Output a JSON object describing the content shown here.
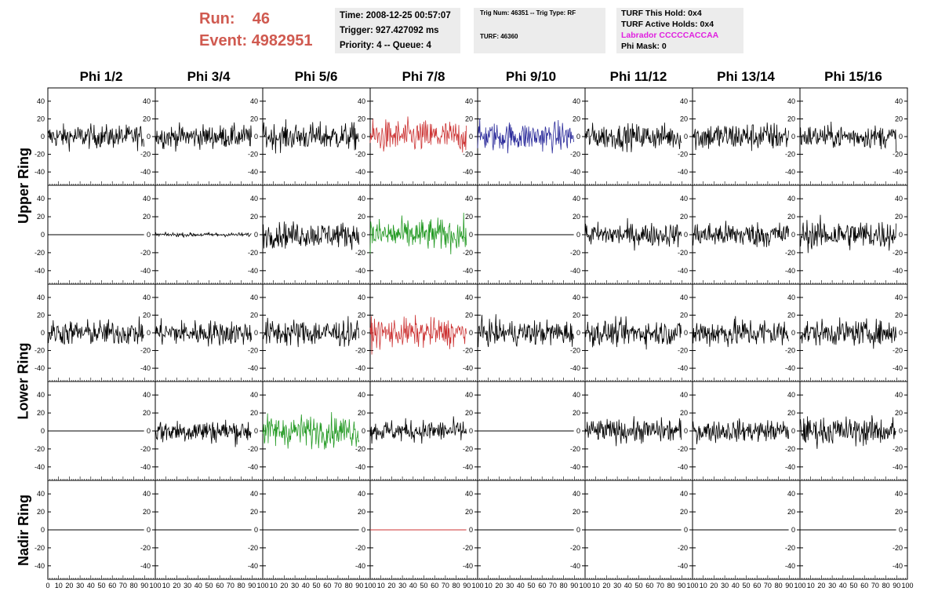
{
  "header": {
    "run_label": "Run:",
    "run_value": "46",
    "event_label": "Event:",
    "event_value": "4982951",
    "time_line": "Time: 2008-12-25 00:57:07",
    "trigger_line": "Trigger: 927.427092 ms",
    "priority_line": "Priority: 4 -- Queue: 4",
    "trig_num_line": "Trig Num: 46351 -- Trig Type: RF",
    "turf_line": "TURF: 46360",
    "turf_this_hold": "TURF This Hold: 0x4",
    "turf_active_holds": "TURF Active Holds: 0x4",
    "labrador_line": "Labrador CCCCCACCAA",
    "phi_mask_line": "Phi Mask: 0"
  },
  "columns": [
    "Phi 1/2",
    "Phi 3/4",
    "Phi 5/6",
    "Phi 7/8",
    "Phi 9/10",
    "Phi 11/12",
    "Phi 13/14",
    "Phi 15/16"
  ],
  "rows": [
    "Upper Ring",
    "Lower Ring",
    "Nadir Ring"
  ],
  "colors": {
    "black": "#000000",
    "red": "#cc3333",
    "blue": "#2a2a9a",
    "green": "#229922",
    "accent": "#d05a50",
    "magenta": "#e020e0"
  },
  "chart_data": {
    "type": "line",
    "title": "",
    "xlabel": "",
    "ylabel": "",
    "xlim": [
      0,
      100
    ],
    "ylim": [
      -55,
      55
    ],
    "y_ticks": [
      -40,
      -20,
      0,
      20,
      40
    ],
    "x_ticks": [
      0,
      10,
      20,
      30,
      40,
      50,
      60,
      70,
      80,
      90,
      100
    ],
    "waveform_length": 90,
    "grid": false,
    "panels": [
      {
        "row": 0,
        "col": 0,
        "color": "black",
        "amp": 12
      },
      {
        "row": 0,
        "col": 1,
        "color": "black",
        "amp": 12
      },
      {
        "row": 0,
        "col": 2,
        "color": "black",
        "amp": 14
      },
      {
        "row": 0,
        "col": 3,
        "color": "red",
        "amp": 17
      },
      {
        "row": 0,
        "col": 4,
        "color": "blue",
        "amp": 15
      },
      {
        "row": 0,
        "col": 5,
        "color": "black",
        "amp": 13
      },
      {
        "row": 0,
        "col": 6,
        "color": "black",
        "amp": 15
      },
      {
        "row": 0,
        "col": 7,
        "color": "black",
        "amp": 12
      },
      {
        "row": 1,
        "col": 0,
        "color": "black",
        "amp": 0
      },
      {
        "row": 1,
        "col": 1,
        "color": "black",
        "amp": 2
      },
      {
        "row": 1,
        "col": 2,
        "color": "black",
        "amp": 13
      },
      {
        "row": 1,
        "col": 3,
        "color": "green",
        "amp": 16
      },
      {
        "row": 1,
        "col": 4,
        "color": "black",
        "amp": 0
      },
      {
        "row": 1,
        "col": 5,
        "color": "black",
        "amp": 12
      },
      {
        "row": 1,
        "col": 6,
        "color": "black",
        "amp": 13
      },
      {
        "row": 1,
        "col": 7,
        "color": "black",
        "amp": 15
      },
      {
        "row": 2,
        "col": 0,
        "color": "black",
        "amp": 13
      },
      {
        "row": 2,
        "col": 1,
        "color": "black",
        "amp": 13
      },
      {
        "row": 2,
        "col": 2,
        "color": "black",
        "amp": 14
      },
      {
        "row": 2,
        "col": 3,
        "color": "red",
        "amp": 15
      },
      {
        "row": 2,
        "col": 4,
        "color": "black",
        "amp": 13
      },
      {
        "row": 2,
        "col": 5,
        "color": "black",
        "amp": 13
      },
      {
        "row": 2,
        "col": 6,
        "color": "black",
        "amp": 15
      },
      {
        "row": 2,
        "col": 7,
        "color": "black",
        "amp": 13
      },
      {
        "row": 3,
        "col": 0,
        "color": "black",
        "amp": 0
      },
      {
        "row": 3,
        "col": 1,
        "color": "black",
        "amp": 12
      },
      {
        "row": 3,
        "col": 2,
        "color": "green",
        "amp": 16
      },
      {
        "row": 3,
        "col": 3,
        "color": "black",
        "amp": 11
      },
      {
        "row": 3,
        "col": 4,
        "color": "black",
        "amp": 0
      },
      {
        "row": 3,
        "col": 5,
        "color": "black",
        "amp": 12
      },
      {
        "row": 3,
        "col": 6,
        "color": "black",
        "amp": 11
      },
      {
        "row": 3,
        "col": 7,
        "color": "black",
        "amp": 14
      },
      {
        "row": 4,
        "col": 0,
        "color": "black",
        "amp": 0
      },
      {
        "row": 4,
        "col": 1,
        "color": "black",
        "amp": 0
      },
      {
        "row": 4,
        "col": 2,
        "color": "black",
        "amp": 0
      },
      {
        "row": 4,
        "col": 3,
        "color": "red",
        "amp": 0
      },
      {
        "row": 4,
        "col": 4,
        "color": "black",
        "amp": 0
      },
      {
        "row": 4,
        "col": 5,
        "color": "black",
        "amp": 0
      },
      {
        "row": 4,
        "col": 6,
        "color": "black",
        "amp": 0
      },
      {
        "row": 4,
        "col": 7,
        "color": "black",
        "amp": 0
      }
    ]
  }
}
